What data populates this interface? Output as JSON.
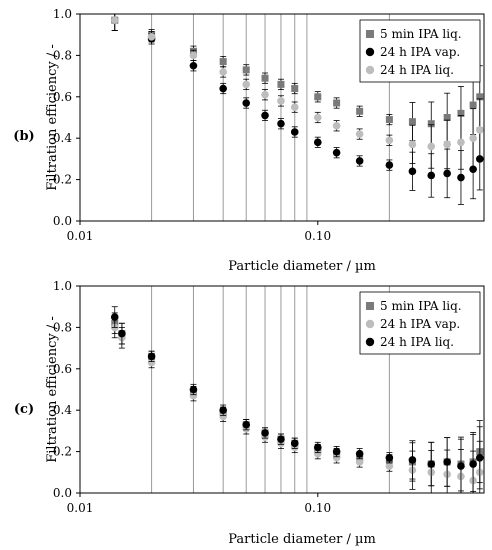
{
  "chart_data": [
    {
      "type": "scatter",
      "panel_label": "(b)",
      "xlabel": "Particle diameter / µm",
      "ylabel": "Filtration efficiency / -",
      "xscale": "log",
      "xlim": [
        0.01,
        0.5
      ],
      "ylim": [
        0,
        1.0
      ],
      "x_tick_labels": [
        "0.01",
        "0.10"
      ],
      "y_tick_labels": [
        "0.0",
        "0.2",
        "0.4",
        "0.6",
        "0.8",
        "1.0"
      ],
      "grid": "vertical",
      "legend_position": "top-right",
      "series": [
        {
          "name": "5 min IPA liq.",
          "marker": "square",
          "color": "#7a7a7a",
          "x": [
            0.014,
            0.02,
            0.03,
            0.04,
            0.05,
            0.06,
            0.07,
            0.08,
            0.1,
            0.12,
            0.15,
            0.2,
            0.25,
            0.3,
            0.35,
            0.4,
            0.45,
            0.48
          ],
          "y": [
            0.97,
            0.9,
            0.82,
            0.77,
            0.73,
            0.69,
            0.66,
            0.64,
            0.6,
            0.57,
            0.53,
            0.49,
            0.48,
            0.47,
            0.5,
            0.52,
            0.56,
            0.6
          ]
        },
        {
          "name": "24 h IPA vap.",
          "marker": "circle",
          "color": "#000000",
          "x": [
            0.014,
            0.02,
            0.03,
            0.04,
            0.05,
            0.06,
            0.07,
            0.08,
            0.1,
            0.12,
            0.15,
            0.2,
            0.25,
            0.3,
            0.35,
            0.4,
            0.45,
            0.48
          ],
          "y": [
            0.97,
            0.88,
            0.75,
            0.64,
            0.57,
            0.51,
            0.47,
            0.43,
            0.38,
            0.33,
            0.29,
            0.27,
            0.24,
            0.22,
            0.23,
            0.21,
            0.25,
            0.3
          ]
        },
        {
          "name": "24 h IPA liq.",
          "marker": "circle",
          "color": "#bdbdbd",
          "x": [
            0.014,
            0.02,
            0.03,
            0.04,
            0.05,
            0.06,
            0.07,
            0.08,
            0.1,
            0.12,
            0.15,
            0.2,
            0.25,
            0.3,
            0.35,
            0.4,
            0.45,
            0.48
          ],
          "y": [
            0.97,
            0.89,
            0.8,
            0.72,
            0.66,
            0.61,
            0.58,
            0.55,
            0.5,
            0.46,
            0.42,
            0.39,
            0.37,
            0.36,
            0.37,
            0.38,
            0.4,
            0.44
          ]
        }
      ]
    },
    {
      "type": "scatter",
      "panel_label": "(c)",
      "xlabel": "Particle diameter / µm",
      "ylabel": "Filtration efficiency / -",
      "xscale": "log",
      "xlim": [
        0.01,
        0.5
      ],
      "ylim": [
        0,
        1.0
      ],
      "x_tick_labels": [
        "0.01",
        "0.10"
      ],
      "y_tick_labels": [
        "0.0",
        "0.2",
        "0.4",
        "0.6",
        "0.8",
        "1.0"
      ],
      "grid": "vertical",
      "legend_position": "top-right",
      "series": [
        {
          "name": "5 min IPA liq.",
          "marker": "square",
          "color": "#7a7a7a",
          "x": [
            0.014,
            0.015,
            0.02,
            0.03,
            0.04,
            0.05,
            0.06,
            0.07,
            0.08,
            0.1,
            0.12,
            0.15,
            0.2,
            0.25,
            0.3,
            0.35,
            0.4,
            0.45,
            0.48
          ],
          "y": [
            0.82,
            0.77,
            0.66,
            0.49,
            0.39,
            0.33,
            0.29,
            0.26,
            0.24,
            0.21,
            0.19,
            0.17,
            0.16,
            0.15,
            0.14,
            0.15,
            0.14,
            0.15,
            0.2
          ]
        },
        {
          "name": "24 h IPA vap.",
          "marker": "circle",
          "color": "#bdbdbd",
          "x": [
            0.014,
            0.015,
            0.02,
            0.03,
            0.04,
            0.05,
            0.06,
            0.07,
            0.08,
            0.1,
            0.12,
            0.15,
            0.2,
            0.25,
            0.3,
            0.35,
            0.4,
            0.45,
            0.48
          ],
          "y": [
            0.8,
            0.75,
            0.63,
            0.47,
            0.37,
            0.31,
            0.27,
            0.24,
            0.22,
            0.19,
            0.17,
            0.15,
            0.13,
            0.11,
            0.1,
            0.09,
            0.08,
            0.06,
            0.1
          ]
        },
        {
          "name": "24 h IPA liq.",
          "marker": "circle",
          "color": "#000000",
          "x": [
            0.014,
            0.015,
            0.02,
            0.03,
            0.04,
            0.05,
            0.06,
            0.07,
            0.08,
            0.1,
            0.12,
            0.15,
            0.2,
            0.25,
            0.3,
            0.35,
            0.4,
            0.45,
            0.48
          ],
          "y": [
            0.85,
            0.77,
            0.66,
            0.5,
            0.4,
            0.33,
            0.29,
            0.26,
            0.24,
            0.22,
            0.2,
            0.19,
            0.17,
            0.16,
            0.14,
            0.15,
            0.13,
            0.14,
            0.17
          ]
        }
      ]
    }
  ]
}
